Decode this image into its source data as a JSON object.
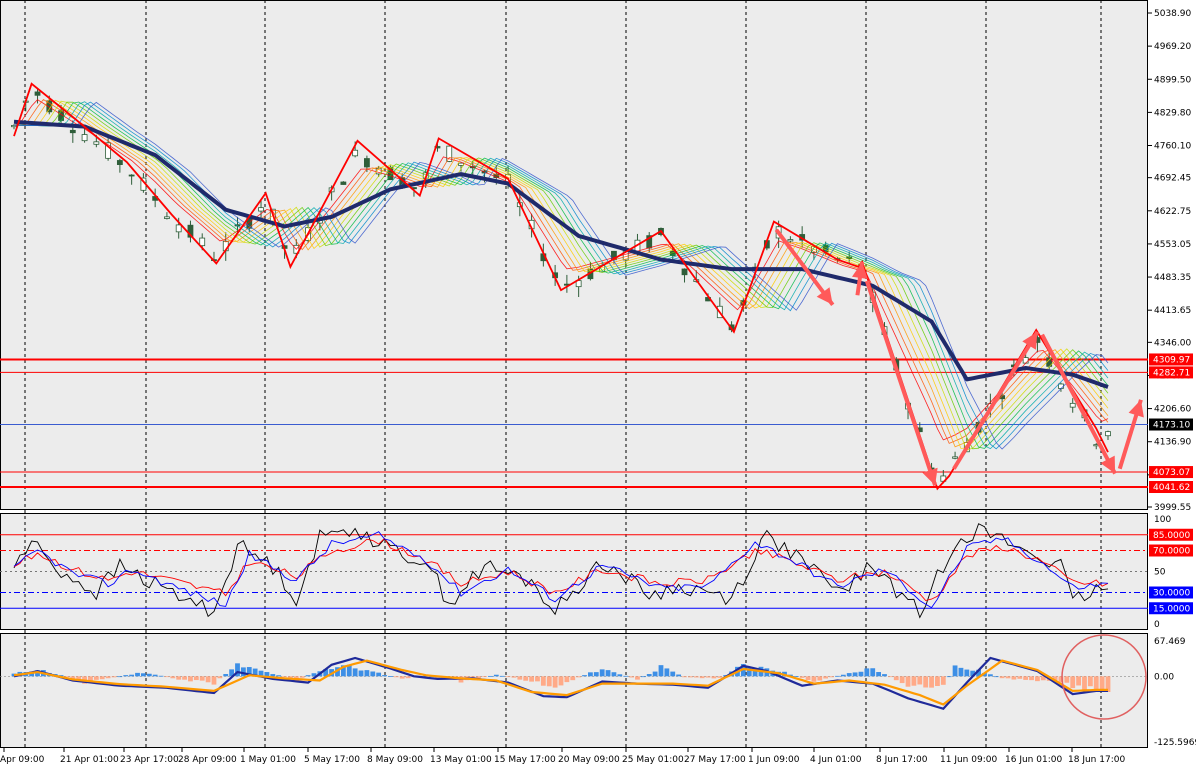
{
  "colors": {
    "background": "#ececec",
    "panel_border": "#000000",
    "grid": "#000000",
    "bull_candle": "#2f5e3a",
    "bear_candle": "#2f5e3a",
    "ma_slow": "#1f2a6b",
    "zigzag": "#ff0000",
    "arrow": "#ff5a5a",
    "level": "#ff0000",
    "current_price_line": "#3a5cd0",
    "current_price_tag": "#000000",
    "stoch_main": "#000000",
    "stoch_signal": "#ff0000",
    "stoch_rsi": "#0000ff",
    "macd_pos_hist": "#3d8fe6",
    "macd_neg_hist": "#ffaa88",
    "macd_line": "#1f2a9a",
    "macd_signal": "#ff9a00",
    "highlight_circle": "#e06060"
  },
  "chart_data": [
    {
      "type": "candlestick",
      "panel": "price",
      "ylim": [
        3999.55,
        5038.9
      ],
      "y_ticks": [
        "5038.90",
        "4969.20",
        "4899.50",
        "4829.80",
        "4760.10",
        "4692.45",
        "4622.75",
        "4553.05",
        "4483.35",
        "4413.65",
        "4346.00",
        "4276.30",
        "4206.60",
        "4136.90",
        "4067.20",
        "3999.55"
      ],
      "current_price": "4173.10",
      "levels": [
        {
          "label": "4309.97",
          "value": 4309.97,
          "thick": true
        },
        {
          "label": "4282.71",
          "value": 4282.71,
          "thick": false
        },
        {
          "label": "4073.07",
          "value": 4073.07,
          "thick": false
        },
        {
          "label": "4041.62",
          "value": 4041.62,
          "thick": true
        }
      ],
      "zigzag": [
        [
          0.0,
          4780
        ],
        [
          1.5,
          4890
        ],
        [
          5.0,
          4820
        ],
        [
          9.6,
          4725
        ],
        [
          13.4,
          4615
        ],
        [
          17.2,
          4512
        ],
        [
          21.4,
          4660
        ],
        [
          23.5,
          4505
        ],
        [
          29.2,
          4770
        ],
        [
          34.5,
          4655
        ],
        [
          36.1,
          4775
        ],
        [
          42.0,
          4690
        ],
        [
          46.5,
          4456
        ],
        [
          55.0,
          4580
        ],
        [
          61.2,
          4368
        ],
        [
          64.6,
          4600
        ],
        [
          70.0,
          4520
        ],
        [
          71.8,
          4505
        ],
        [
          72.1,
          4515
        ],
        [
          78.5,
          4038
        ],
        [
          79.5,
          4065
        ],
        [
          86.9,
          4372
        ],
        [
          92.0,
          4165
        ],
        [
          93.0,
          4115
        ]
      ],
      "arrows": [
        {
          "from": [
            64.8,
            4583
          ],
          "to": [
            69.6,
            4425
          ]
        },
        {
          "from": [
            71.7,
            4445
          ],
          "to": [
            72.1,
            4515
          ]
        },
        {
          "from": [
            72.5,
            4475
          ],
          "to": [
            78.3,
            4045
          ]
        },
        {
          "from": [
            79.9,
            4080
          ],
          "to": [
            87.0,
            4368
          ]
        },
        {
          "from": [
            87.4,
            4362
          ],
          "to": [
            93.6,
            4070
          ]
        },
        {
          "from": [
            94.0,
            4080
          ],
          "to": [
            95.8,
            4225
          ]
        }
      ],
      "anchors": [
        [
          0,
          4800
        ],
        [
          1.5,
          4880
        ],
        [
          5,
          4805
        ],
        [
          9.6,
          4715
        ],
        [
          13.4,
          4610
        ],
        [
          17.2,
          4525
        ],
        [
          21.4,
          4645
        ],
        [
          23.5,
          4515
        ],
        [
          29.2,
          4745
        ],
        [
          34.5,
          4665
        ],
        [
          36.1,
          4755
        ],
        [
          42,
          4680
        ],
        [
          46.5,
          4462
        ],
        [
          55,
          4570
        ],
        [
          61.2,
          4375
        ],
        [
          64.6,
          4585
        ],
        [
          70,
          4520
        ],
        [
          72,
          4505
        ],
        [
          78.5,
          4048
        ],
        [
          79.5,
          4080
        ],
        [
          86.9,
          4355
        ],
        [
          92,
          4145
        ],
        [
          93,
          4165
        ]
      ],
      "ma_slow_anchors": [
        [
          0,
          4810
        ],
        [
          6,
          4800
        ],
        [
          12,
          4740
        ],
        [
          18,
          4625
        ],
        [
          23,
          4590
        ],
        [
          27,
          4610
        ],
        [
          32,
          4668
        ],
        [
          38,
          4700
        ],
        [
          42,
          4680
        ],
        [
          48,
          4570
        ],
        [
          55,
          4520
        ],
        [
          61,
          4500
        ],
        [
          67,
          4500
        ],
        [
          73,
          4465
        ],
        [
          78,
          4390
        ],
        [
          81,
          4268
        ],
        [
          86,
          4292
        ],
        [
          90,
          4278
        ],
        [
          93,
          4252
        ]
      ]
    },
    {
      "type": "line",
      "panel": "oscillator",
      "ylim": [
        0,
        100
      ],
      "y_ticks": [
        "100",
        "50",
        "0"
      ],
      "levels": [
        {
          "label": "85.0000",
          "value": 85,
          "style": "solid",
          "color": "#ff0000"
        },
        {
          "label": "70.0000",
          "value": 70,
          "style": "dash",
          "color": "#ff0000"
        },
        {
          "label": "30.0000",
          "value": 30,
          "style": "dash",
          "color": "#0000ff"
        },
        {
          "label": "15.0000",
          "value": 15,
          "style": "solid",
          "color": "#0000ff"
        }
      ],
      "series_anchors": {
        "main": [
          [
            0,
            55
          ],
          [
            1.5,
            78
          ],
          [
            4,
            50
          ],
          [
            7,
            30
          ],
          [
            9,
            55
          ],
          [
            13,
            32
          ],
          [
            17,
            12
          ],
          [
            19,
            75
          ],
          [
            22,
            55
          ],
          [
            24,
            25
          ],
          [
            26,
            82
          ],
          [
            29,
            92
          ],
          [
            32,
            70
          ],
          [
            35,
            60
          ],
          [
            37,
            20
          ],
          [
            40,
            55
          ],
          [
            44,
            40
          ],
          [
            46,
            12
          ],
          [
            50,
            60
          ],
          [
            54,
            28
          ],
          [
            57,
            35
          ],
          [
            61,
            25
          ],
          [
            64,
            85
          ],
          [
            67,
            60
          ],
          [
            70,
            30
          ],
          [
            73,
            55
          ],
          [
            77,
            10
          ],
          [
            80,
            80
          ],
          [
            82,
            90
          ],
          [
            86,
            70
          ],
          [
            89,
            55
          ],
          [
            90,
            20
          ],
          [
            92,
            32
          ]
        ],
        "signal": [
          [
            0,
            55
          ],
          [
            2,
            68
          ],
          [
            5,
            52
          ],
          [
            8,
            42
          ],
          [
            10,
            50
          ],
          [
            14,
            40
          ],
          [
            18,
            28
          ],
          [
            20,
            60
          ],
          [
            24,
            45
          ],
          [
            27,
            70
          ],
          [
            31,
            80
          ],
          [
            35,
            62
          ],
          [
            38,
            38
          ],
          [
            42,
            50
          ],
          [
            46,
            30
          ],
          [
            50,
            52
          ],
          [
            55,
            38
          ],
          [
            59,
            42
          ],
          [
            63,
            70
          ],
          [
            66,
            60
          ],
          [
            70,
            42
          ],
          [
            74,
            50
          ],
          [
            78,
            22
          ],
          [
            81,
            65
          ],
          [
            84,
            74
          ],
          [
            87,
            62
          ],
          [
            90,
            40
          ],
          [
            93,
            38
          ]
        ],
        "rsi": [
          [
            0,
            52
          ],
          [
            2,
            70
          ],
          [
            5,
            48
          ],
          [
            8,
            38
          ],
          [
            10,
            52
          ],
          [
            14,
            34
          ],
          [
            18,
            18
          ],
          [
            20,
            66
          ],
          [
            24,
            42
          ],
          [
            27,
            76
          ],
          [
            31,
            84
          ],
          [
            35,
            62
          ],
          [
            38,
            30
          ],
          [
            42,
            52
          ],
          [
            46,
            24
          ],
          [
            50,
            56
          ],
          [
            55,
            34
          ],
          [
            59,
            36
          ],
          [
            63,
            78
          ],
          [
            66,
            62
          ],
          [
            70,
            36
          ],
          [
            74,
            52
          ],
          [
            78,
            16
          ],
          [
            81,
            72
          ],
          [
            84,
            82
          ],
          [
            87,
            62
          ],
          [
            90,
            35
          ],
          [
            93,
            38
          ]
        ]
      }
    },
    {
      "type": "histogram_line",
      "panel": "macd",
      "ylim": [
        -125.5969,
        67.469
      ],
      "y_ticks": [
        "67.469",
        "0.00",
        "-125.5969"
      ],
      "hist_anchors": [
        [
          0,
          5
        ],
        [
          2,
          14
        ],
        [
          4,
          2
        ],
        [
          6,
          -12
        ],
        [
          8,
          -4
        ],
        [
          11,
          8
        ],
        [
          14,
          -6
        ],
        [
          17,
          -14
        ],
        [
          19,
          22
        ],
        [
          22,
          5
        ],
        [
          24,
          -8
        ],
        [
          26,
          12
        ],
        [
          28,
          22
        ],
        [
          31,
          6
        ],
        [
          33,
          -5
        ],
        [
          35,
          2
        ],
        [
          38,
          -10
        ],
        [
          41,
          3
        ],
        [
          44,
          -10
        ],
        [
          46,
          -22
        ],
        [
          48,
          -2
        ],
        [
          50,
          15
        ],
        [
          53,
          -6
        ],
        [
          55,
          18
        ],
        [
          57,
          -2
        ],
        [
          60,
          -4
        ],
        [
          62,
          22
        ],
        [
          64,
          18
        ],
        [
          66,
          4
        ],
        [
          68,
          -10
        ],
        [
          71,
          6
        ],
        [
          73,
          16
        ],
        [
          76,
          -18
        ],
        [
          79,
          -22
        ],
        [
          80,
          22
        ],
        [
          82,
          12
        ],
        [
          84,
          -4
        ],
        [
          87,
          -8
        ],
        [
          89,
          -14
        ],
        [
          91,
          -24
        ],
        [
          92,
          -26
        ]
      ],
      "macd_anchors": [
        [
          0,
          0
        ],
        [
          2,
          10
        ],
        [
          5,
          -8
        ],
        [
          9,
          -18
        ],
        [
          13,
          -22
        ],
        [
          17,
          -32
        ],
        [
          19,
          8
        ],
        [
          22,
          -5
        ],
        [
          25,
          -12
        ],
        [
          27,
          22
        ],
        [
          29,
          35
        ],
        [
          32,
          15
        ],
        [
          34,
          0
        ],
        [
          36,
          -5
        ],
        [
          39,
          -4
        ],
        [
          42,
          -12
        ],
        [
          45,
          -38
        ],
        [
          47,
          -40
        ],
        [
          50,
          -10
        ],
        [
          53,
          -14
        ],
        [
          56,
          -16
        ],
        [
          59,
          -22
        ],
        [
          62,
          20
        ],
        [
          64,
          10
        ],
        [
          67,
          -18
        ],
        [
          70,
          -8
        ],
        [
          73,
          -14
        ],
        [
          76,
          -42
        ],
        [
          79,
          -62
        ],
        [
          81,
          -12
        ],
        [
          83,
          35
        ],
        [
          87,
          10
        ],
        [
          90,
          -34
        ],
        [
          92,
          -28
        ]
      ],
      "signal_anchors": [
        [
          0,
          2
        ],
        [
          2,
          8
        ],
        [
          5,
          -6
        ],
        [
          9,
          -15
        ],
        [
          13,
          -20
        ],
        [
          17,
          -28
        ],
        [
          20,
          2
        ],
        [
          23,
          -4
        ],
        [
          26,
          -8
        ],
        [
          28,
          18
        ],
        [
          30,
          30
        ],
        [
          33,
          12
        ],
        [
          35,
          2
        ],
        [
          38,
          -4
        ],
        [
          41,
          -8
        ],
        [
          44,
          -30
        ],
        [
          47,
          -36
        ],
        [
          50,
          -14
        ],
        [
          53,
          -14
        ],
        [
          56,
          -14
        ],
        [
          59,
          -18
        ],
        [
          62,
          14
        ],
        [
          65,
          6
        ],
        [
          68,
          -14
        ],
        [
          71,
          -8
        ],
        [
          74,
          -16
        ],
        [
          77,
          -36
        ],
        [
          79,
          -54
        ],
        [
          81,
          -18
        ],
        [
          84,
          30
        ],
        [
          87,
          12
        ],
        [
          90,
          -28
        ],
        [
          92,
          -26
        ]
      ]
    }
  ],
  "x_labels": [
    "Apr 09:00",
    "21 Apr 01:00",
    "23 Apr 17:00",
    "28 Apr 09:00",
    "1 May 01:00",
    "5 May 17:00",
    "8 May 09:00",
    "13 May 01:00",
    "15 May 17:00",
    "20 May 09:00",
    "25 May 01:00",
    "27 May 17:00",
    "1 Jun 09:00",
    "4 Jun 01:00",
    "8 Jun 17:00",
    "11 Jun 09:00",
    "16 Jun 01:00",
    "18 Jun 17:00"
  ]
}
